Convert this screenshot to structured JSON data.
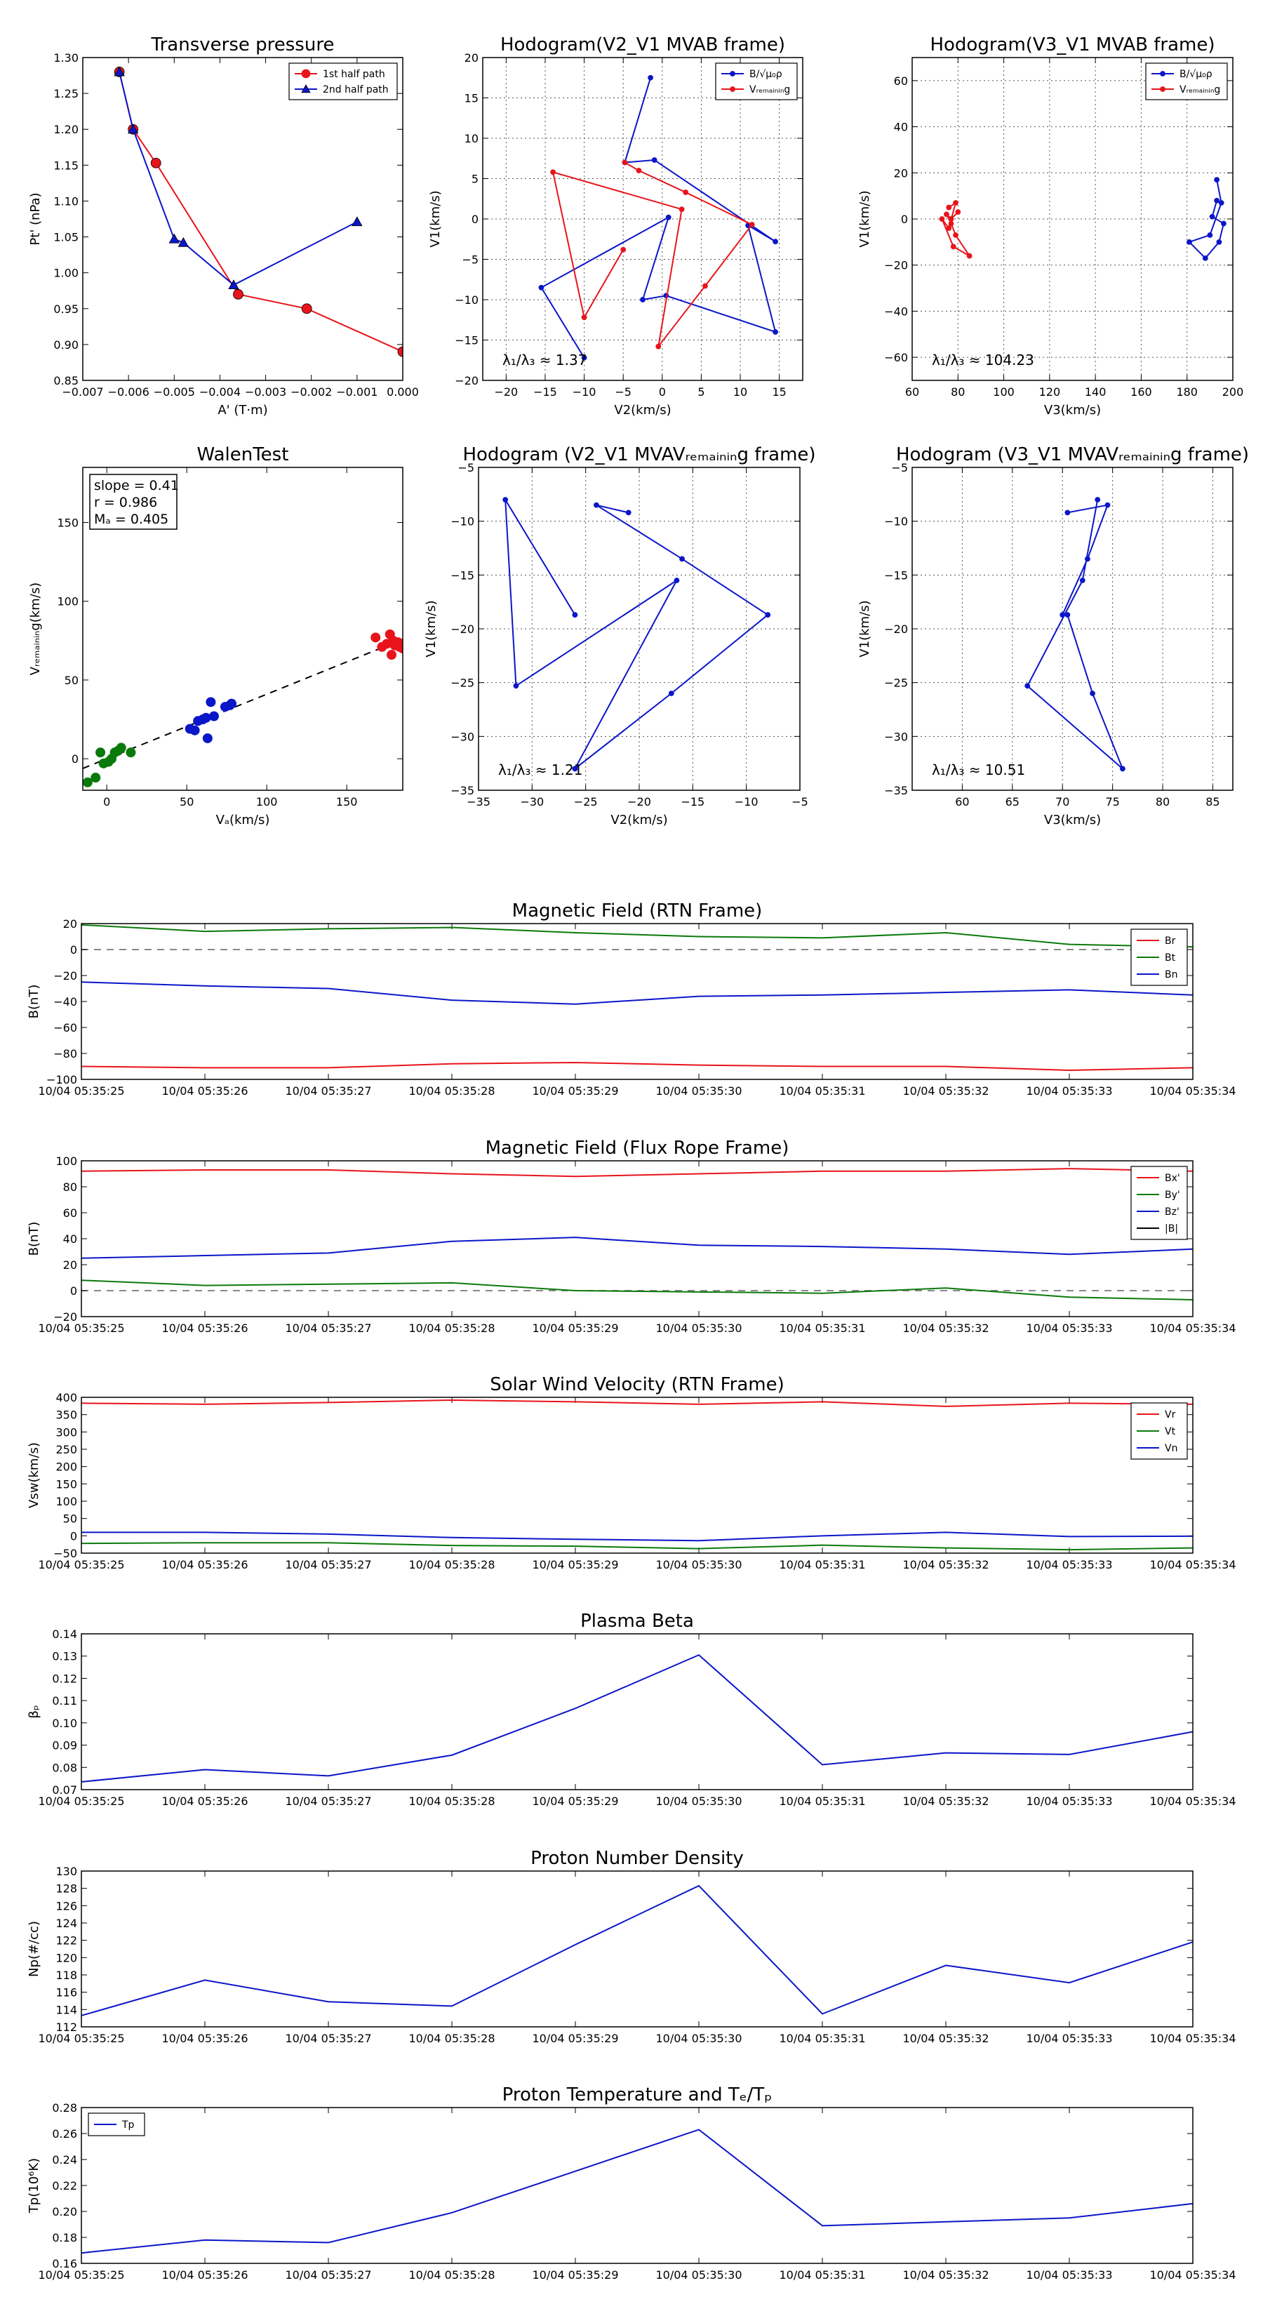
{
  "chart_data": [
    {
      "id": "transverse-pressure",
      "type": "line",
      "title": "Transverse pressure",
      "xlabel": "A' (T·m)",
      "ylabel": "Pt' (nPa)",
      "xlim": [
        -0.007,
        0.0
      ],
      "ylim": [
        0.85,
        1.3
      ],
      "xticks": [
        -0.007,
        -0.006,
        -0.005,
        -0.004,
        -0.003,
        -0.002,
        -0.001,
        0.0
      ],
      "xtick_labels": [
        "−0.007",
        "−0.006",
        "−0.005",
        "−0.004",
        "−0.003",
        "−0.002",
        "−0.001",
        "0.000"
      ],
      "yticks": [
        0.85,
        0.9,
        0.95,
        1.0,
        1.05,
        1.1,
        1.15,
        1.2,
        1.25,
        1.3
      ],
      "ytick_labels": [
        "0.85",
        "0.90",
        "0.95",
        "1.00",
        "1.05",
        "1.10",
        "1.15",
        "1.20",
        "1.25",
        "1.30"
      ],
      "legend": "top-right",
      "series": [
        {
          "name": "1st half path",
          "color": "#e8141b",
          "marker": "circle",
          "x": [
            -0.0062,
            -0.0059,
            -0.0054,
            -0.0036,
            -0.0021,
            0.0
          ],
          "y": [
            1.28,
            1.2,
            1.153,
            0.97,
            0.95,
            0.89
          ]
        },
        {
          "name": "2nd half path",
          "color": "#0b16c9",
          "marker": "triangle",
          "x": [
            -0.0062,
            -0.0059,
            -0.005,
            -0.0048,
            -0.0037,
            -0.001
          ],
          "y": [
            1.28,
            1.2,
            1.047,
            1.042,
            0.983,
            1.071
          ]
        }
      ]
    },
    {
      "id": "hodogram-v2v1-mvab",
      "type": "line",
      "title": "Hodogram(V2_V1 MVAB frame)",
      "xlabel": "V2(km/s)",
      "ylabel": "V1(km/s)",
      "xlim": [
        -23,
        18
      ],
      "ylim": [
        -20,
        20
      ],
      "xticks": [
        -20,
        -15,
        -10,
        -5,
        0,
        5,
        10,
        15
      ],
      "xtick_labels": [
        "−20",
        "−15",
        "−10",
        "−5",
        "0",
        "5",
        "10",
        "15"
      ],
      "yticks": [
        -20,
        -15,
        -10,
        -5,
        0,
        5,
        10,
        15,
        20
      ],
      "ytick_labels": [
        "−20",
        "−15",
        "−10",
        "−5",
        "0",
        "5",
        "10",
        "15",
        "20"
      ],
      "grid": true,
      "legend": "top-right",
      "legend_labels": [
        "B/√μ₀ρ",
        "Vᵣₑₘₐᵢₙᵢₙg"
      ],
      "annotation": "λ₁/λ₃ ≈ 1.37",
      "series": [
        {
          "name": "B",
          "color": "#0b16c9",
          "x": [
            -1.5,
            -4.8,
            -1.0,
            14.5,
            11.0,
            14.5,
            0.5,
            -2.5,
            0.8,
            -15.5,
            -10.0
          ],
          "y": [
            17.5,
            7.0,
            7.3,
            -2.8,
            -0.8,
            -14.0,
            -9.5,
            -10.0,
            0.2,
            -8.5,
            -17.2
          ]
        },
        {
          "name": "V",
          "color": "#e8141b",
          "x": [
            -4.8,
            -3.0,
            3.0,
            11.5,
            5.5,
            -0.5,
            2.5,
            -14.0,
            -10.0,
            -5.0
          ],
          "y": [
            7.0,
            6.0,
            3.3,
            -0.7,
            -8.3,
            -15.8,
            1.2,
            5.8,
            -12.2,
            -3.8
          ]
        }
      ]
    },
    {
      "id": "hodogram-v3v1-mvab",
      "type": "line",
      "title": "Hodogram(V3_V1 MVAB frame)",
      "xlabel": "V3(km/s)",
      "ylabel": "V1(km/s)",
      "xlim": [
        60,
        200
      ],
      "ylim": [
        -70,
        70
      ],
      "xticks": [
        60,
        80,
        100,
        120,
        140,
        160,
        180,
        200
      ],
      "xtick_labels": [
        "60",
        "80",
        "100",
        "120",
        "140",
        "160",
        "180",
        "200"
      ],
      "yticks": [
        -60,
        -40,
        -20,
        0,
        20,
        40,
        60
      ],
      "ytick_labels": [
        "−60",
        "−40",
        "−20",
        "0",
        "20",
        "40",
        "60"
      ],
      "grid": true,
      "legend": "top-right",
      "legend_labels": [
        "B/√μ₀ρ",
        "Vᵣₑₘₐᵢₙᵢₙg"
      ],
      "annotation": "λ₁/λ₃ ≈ 104.23",
      "series": [
        {
          "name": "B",
          "color": "#0b16c9",
          "x": [
            193,
            195,
            190,
            181,
            188,
            194,
            196,
            191,
            193
          ],
          "y": [
            17,
            7,
            -7,
            -10,
            -17,
            -10,
            -2,
            1,
            8
          ]
        },
        {
          "name": "V",
          "color": "#e8141b",
          "x": [
            76,
            79,
            76,
            73,
            78,
            85,
            79,
            77,
            75,
            77,
            80
          ],
          "y": [
            5,
            7,
            -4,
            0,
            -12,
            -16,
            -7,
            -2,
            2,
            0,
            3
          ]
        }
      ]
    },
    {
      "id": "walen-test",
      "type": "scatter",
      "title": "WalenTest",
      "xlabel": "Vₐ(km/s)",
      "ylabel": "Vᵣₑₘₐᵢₙᵢₙg(km/s)",
      "xlim": [
        -15,
        185
      ],
      "ylim": [
        -20,
        185
      ],
      "xticks": [
        0,
        50,
        100,
        150
      ],
      "xtick_labels": [
        "0",
        "50",
        "100",
        "150"
      ],
      "yticks": [
        0,
        50,
        100,
        150
      ],
      "ytick_labels": [
        "0",
        "50",
        "100",
        "150"
      ],
      "annotation_lines": [
        "slope = 0.41",
        "r = 0.986",
        "Mₐ = 0.405"
      ],
      "fit": {
        "slope": 0.41,
        "intercept": 0.0
      },
      "series": [
        {
          "name": "green",
          "color": "#0a7a0a",
          "x": [
            -12,
            -7,
            -4,
            -2,
            1,
            3,
            5,
            7,
            9,
            15
          ],
          "y": [
            -15,
            -12,
            4,
            -3,
            -2,
            0,
            4,
            5,
            7,
            4
          ]
        },
        {
          "name": "blue",
          "color": "#0b16c9",
          "x": [
            52,
            55,
            57,
            60,
            62,
            63,
            65,
            67,
            74,
            77,
            78
          ],
          "y": [
            19,
            18,
            24,
            25,
            26,
            13,
            36,
            27,
            33,
            34,
            35
          ]
        },
        {
          "name": "red",
          "color": "#e8141b",
          "x": [
            168,
            172,
            175,
            177,
            178,
            179,
            180,
            182,
            183,
            185
          ],
          "y": [
            77,
            71,
            73,
            79,
            66,
            75,
            72,
            74,
            71,
            70
          ]
        }
      ]
    },
    {
      "id": "hodogram-v2v1-mvav",
      "type": "line",
      "title": "Hodogram (V2_V1 MVAVᵣₑₘₐᵢₙᵢₙg frame)",
      "xlabel": "V2(km/s)",
      "ylabel": "V1(km/s)",
      "xlim": [
        -35,
        -5
      ],
      "ylim": [
        -35,
        -5
      ],
      "xticks": [
        -35,
        -30,
        -25,
        -20,
        -15,
        -10,
        -5
      ],
      "xtick_labels": [
        "−35",
        "−30",
        "−25",
        "−20",
        "−15",
        "−10",
        "−5"
      ],
      "yticks": [
        -35,
        -30,
        -25,
        -20,
        -15,
        -10,
        -5
      ],
      "ytick_labels": [
        "−35",
        "−30",
        "−25",
        "−20",
        "−15",
        "−10",
        "−5"
      ],
      "grid": true,
      "annotation": "λ₁/λ₃ ≈ 1.21",
      "series": [
        {
          "name": "V",
          "color": "#0b16c9",
          "x": [
            -21,
            -24,
            -16,
            -8,
            -17,
            -26,
            -16.5,
            -31.5,
            -32.5,
            -26
          ],
          "y": [
            -9.2,
            -8.5,
            -13.5,
            -18.7,
            -26,
            -33,
            -15.5,
            -25.3,
            -8,
            -18.7
          ]
        }
      ]
    },
    {
      "id": "hodogram-v3v1-mvav",
      "type": "line",
      "title": "Hodogram (V3_V1 MVAVᵣₑₘₐᵢₙᵢₙg frame)",
      "xlabel": "V3(km/s)",
      "ylabel": "V1(km/s)",
      "xlim": [
        55,
        87
      ],
      "ylim": [
        -35,
        -5
      ],
      "xticks": [
        60,
        65,
        70,
        75,
        80,
        85
      ],
      "xtick_labels": [
        "60",
        "65",
        "70",
        "75",
        "80",
        "85"
      ],
      "yticks": [
        -35,
        -30,
        -25,
        -20,
        -15,
        -10,
        -5
      ],
      "ytick_labels": [
        "−35",
        "−30",
        "−25",
        "−20",
        "−15",
        "−10",
        "−5"
      ],
      "grid": true,
      "annotation": "λ₁/λ₃ ≈ 10.51",
      "series": [
        {
          "name": "V",
          "color": "#0b16c9",
          "x": [
            70.5,
            74.5,
            72.5,
            70,
            70.5,
            73,
            76,
            66.5,
            72,
            73.5
          ],
          "y": [
            -9.2,
            -8.5,
            -13.5,
            -18.7,
            -18.7,
            -26,
            -33,
            -25.3,
            -15.5,
            -8
          ]
        }
      ]
    },
    {
      "id": "magnetic-field-rtn",
      "type": "line",
      "title": "Magnetic Field (RTN Frame)",
      "ylabel": "B(nT)",
      "ylim": [
        -100,
        20
      ],
      "yticks": [
        -100,
        -80,
        -60,
        -40,
        -20,
        0,
        20
      ],
      "ytick_labels": [
        "−100",
        "−80",
        "−60",
        "−40",
        "−20",
        "0",
        "20"
      ],
      "zero_line": true,
      "legend": "top-right",
      "x_ticklabels": [
        "10/04 05:35:25",
        "10/04 05:35:26",
        "10/04 05:35:27",
        "10/04 05:35:28",
        "10/04 05:35:29",
        "10/04 05:35:30",
        "10/04 05:35:31",
        "10/04 05:35:32",
        "10/04 05:35:33",
        "10/04 05:35:34"
      ],
      "series": [
        {
          "name": "Br",
          "color": "#e8141b",
          "values": [
            -90,
            -91,
            -91,
            -88,
            -87,
            -89,
            -90,
            -90,
            -93,
            -91
          ]
        },
        {
          "name": "Bt",
          "color": "#0a7a0a",
          "values": [
            19,
            14,
            16,
            17,
            13,
            10,
            9,
            13,
            4,
            2
          ]
        },
        {
          "name": "Bn",
          "color": "#0b16c9",
          "values": [
            -25,
            -28,
            -30,
            -39,
            -42,
            -36,
            -35,
            -33,
            -31,
            -35
          ]
        }
      ]
    },
    {
      "id": "magnetic-field-flux-rope",
      "type": "line",
      "title": "Magnetic Field (Flux Rope Frame)",
      "ylabel": "B(nT)",
      "ylim": [
        -20,
        100
      ],
      "yticks": [
        -20,
        0,
        20,
        40,
        60,
        80,
        100
      ],
      "ytick_labels": [
        "−20",
        "0",
        "20",
        "40",
        "60",
        "80",
        "100"
      ],
      "zero_line": true,
      "legend": "top-right",
      "x_ticklabels": [
        "10/04 05:35:25",
        "10/04 05:35:26",
        "10/04 05:35:27",
        "10/04 05:35:28",
        "10/04 05:35:29",
        "10/04 05:35:30",
        "10/04 05:35:31",
        "10/04 05:35:32",
        "10/04 05:35:33",
        "10/04 05:35:34"
      ],
      "series": [
        {
          "name": "Bx'",
          "color": "#e8141b",
          "values": [
            92,
            93,
            93,
            90,
            88,
            90,
            92,
            92,
            94,
            92
          ]
        },
        {
          "name": "By'",
          "color": "#0a7a0a",
          "values": [
            8,
            4,
            5,
            6,
            0,
            -1,
            -2,
            2,
            -5,
            -7
          ]
        },
        {
          "name": "Bz'",
          "color": "#0b16c9",
          "values": [
            25,
            27,
            29,
            38,
            41,
            35,
            34,
            32,
            28,
            32
          ]
        },
        {
          "name": "|B|",
          "color": "#000000",
          "values": []
        }
      ]
    },
    {
      "id": "solar-wind-velocity",
      "type": "line",
      "title": "Solar Wind Velocity (RTN Frame)",
      "ylabel": "Vsw(km/s)",
      "ylim": [
        -50,
        400
      ],
      "yticks": [
        -50,
        0,
        50,
        100,
        150,
        200,
        250,
        300,
        350,
        400
      ],
      "ytick_labels": [
        "−50",
        "0",
        "50",
        "100",
        "150",
        "200",
        "250",
        "300",
        "350",
        "400"
      ],
      "legend": "top-right",
      "x_ticklabels": [
        "10/04 05:35:25",
        "10/04 05:35:26",
        "10/04 05:35:27",
        "10/04 05:35:28",
        "10/04 05:35:29",
        "10/04 05:35:30",
        "10/04 05:35:31",
        "10/04 05:35:32",
        "10/04 05:35:33",
        "10/04 05:35:34"
      ],
      "series": [
        {
          "name": "Vr",
          "color": "#e8141b",
          "values": [
            383,
            380,
            385,
            392,
            387,
            380,
            387,
            374,
            383,
            380
          ]
        },
        {
          "name": "Vt",
          "color": "#0a7a0a",
          "values": [
            -22,
            -20,
            -20,
            -28,
            -30,
            -37,
            -27,
            -35,
            -40,
            -35
          ]
        },
        {
          "name": "Vn",
          "color": "#0b16c9",
          "values": [
            10,
            10,
            5,
            -5,
            -10,
            -14,
            0,
            10,
            -2,
            -1
          ]
        }
      ]
    },
    {
      "id": "plasma-beta",
      "type": "line",
      "title": "Plasma Beta",
      "ylabel": "βₚ",
      "ylim": [
        0.07,
        0.14
      ],
      "yticks": [
        0.07,
        0.08,
        0.09,
        0.1,
        0.11,
        0.12,
        0.13,
        0.14
      ],
      "ytick_labels": [
        "0.07",
        "0.08",
        "0.09",
        "0.10",
        "0.11",
        "0.12",
        "0.13",
        "0.14"
      ],
      "x_ticklabels": [
        "10/04 05:35:25",
        "10/04 05:35:26",
        "10/04 05:35:27",
        "10/04 05:35:28",
        "10/04 05:35:29",
        "10/04 05:35:30",
        "10/04 05:35:31",
        "10/04 05:35:32",
        "10/04 05:35:33",
        "10/04 05:35:34"
      ],
      "series": [
        {
          "name": "beta",
          "color": "#0b16c9",
          "values": [
            0.0735,
            0.079,
            0.0762,
            0.0855,
            0.1065,
            0.1305,
            0.0812,
            0.0865,
            0.0858,
            0.096
          ]
        }
      ]
    },
    {
      "id": "proton-number-density",
      "type": "line",
      "title": "Proton Number Density",
      "ylabel": "Np(#/cc)",
      "ylim": [
        112,
        130
      ],
      "yticks": [
        112,
        114,
        116,
        118,
        120,
        122,
        124,
        126,
        128,
        130
      ],
      "ytick_labels": [
        "112",
        "114",
        "116",
        "118",
        "120",
        "122",
        "124",
        "126",
        "128",
        "130"
      ],
      "x_ticklabels": [
        "10/04 05:35:25",
        "10/04 05:35:26",
        "10/04 05:35:27",
        "10/04 05:35:28",
        "10/04 05:35:29",
        "10/04 05:35:30",
        "10/04 05:35:31",
        "10/04 05:35:32",
        "10/04 05:35:33",
        "10/04 05:35:34"
      ],
      "series": [
        {
          "name": "Np",
          "color": "#0b16c9",
          "values": [
            113.3,
            117.4,
            114.9,
            114.4,
            121.5,
            128.3,
            113.5,
            119.1,
            117.1,
            121.8
          ]
        }
      ]
    },
    {
      "id": "proton-temperature",
      "type": "line",
      "title": "Proton Temperature and Tₑ/Tₚ",
      "ylabel": "Tp(10⁶K)",
      "ylim": [
        0.16,
        0.28
      ],
      "yticks": [
        0.16,
        0.18,
        0.2,
        0.22,
        0.24,
        0.26,
        0.28
      ],
      "ytick_labels": [
        "0.16",
        "0.18",
        "0.20",
        "0.22",
        "0.24",
        "0.26",
        "0.28"
      ],
      "legend": "top-left",
      "x_ticklabels": [
        "10/04 05:35:25",
        "10/04 05:35:26",
        "10/04 05:35:27",
        "10/04 05:35:28",
        "10/04 05:35:29",
        "10/04 05:35:30",
        "10/04 05:35:31",
        "10/04 05:35:32",
        "10/04 05:35:33",
        "10/04 05:35:34"
      ],
      "series": [
        {
          "name": "Tp",
          "color": "#0b16c9",
          "values": [
            0.168,
            0.178,
            0.176,
            0.199,
            0.231,
            0.263,
            0.189,
            0.192,
            0.195,
            0.206
          ]
        }
      ]
    }
  ]
}
